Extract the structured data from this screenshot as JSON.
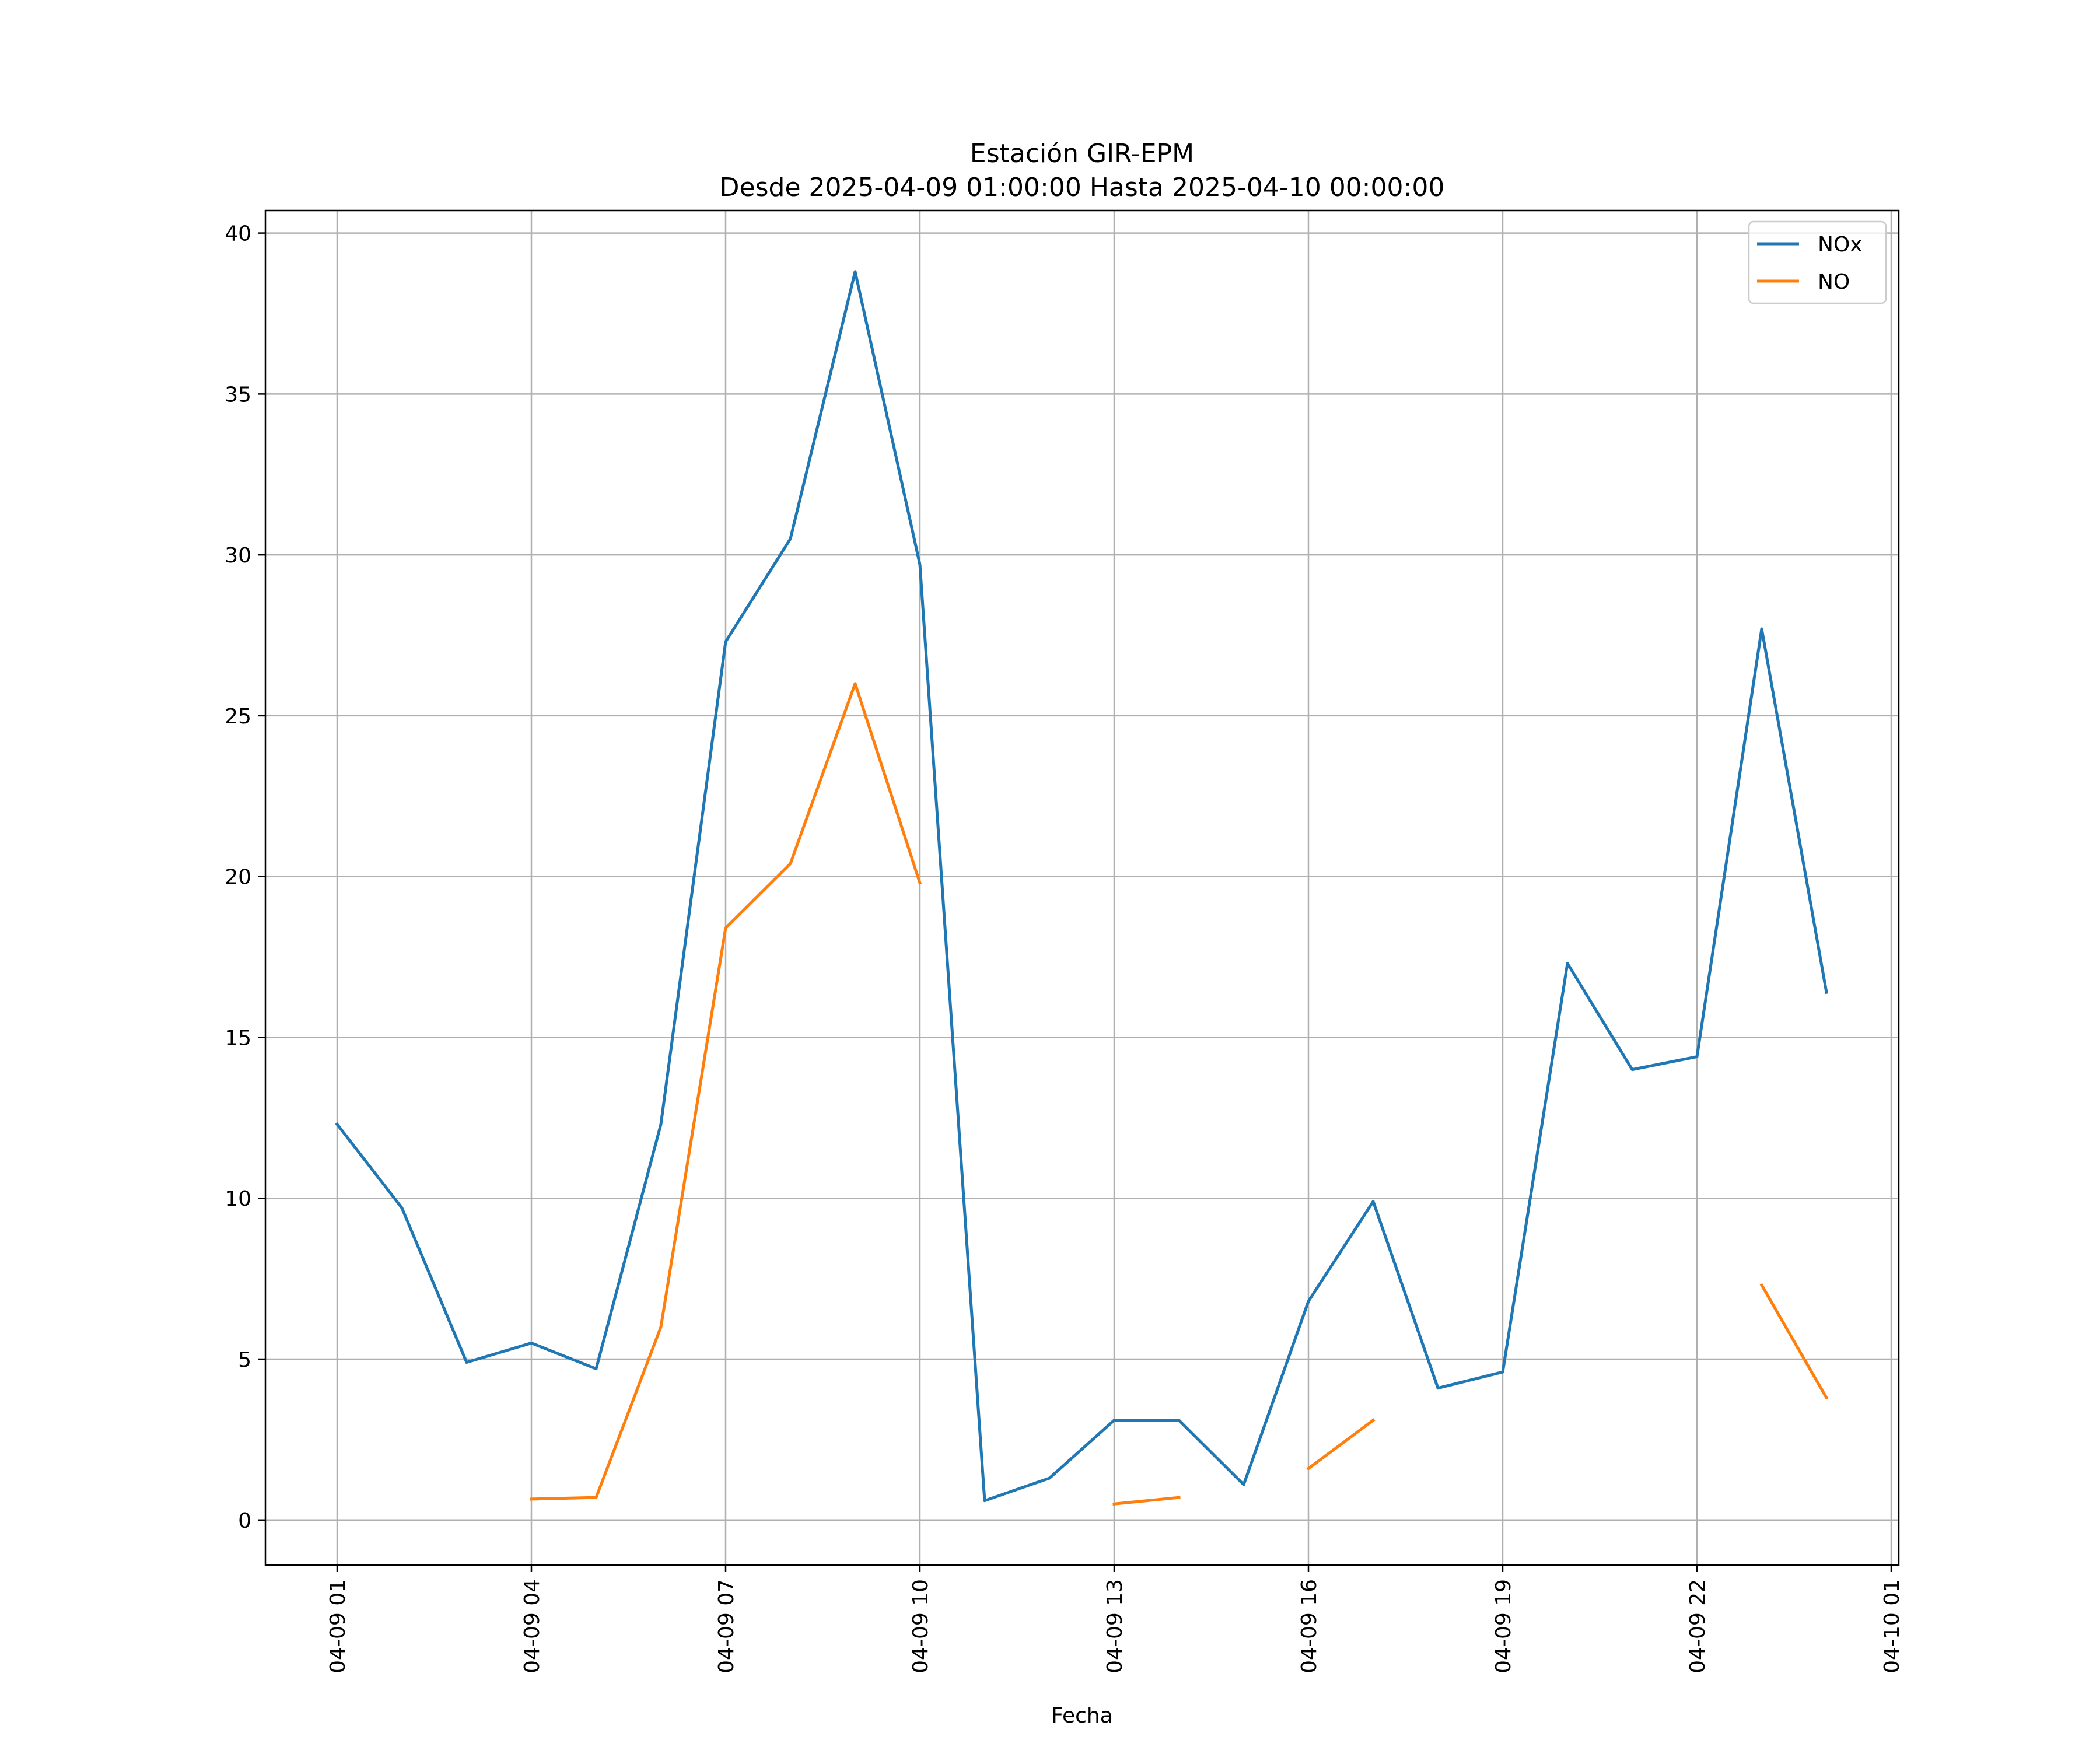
{
  "chart_data": {
    "type": "line",
    "title_lines": [
      "Estación GIR-EPM",
      "Desde 2025-04-09 01:00:00 Hasta 2025-04-10 00:00:00"
    ],
    "xlabel": "Fecha",
    "ylabel": "",
    "x": [
      "04-09 01",
      "04-09 02",
      "04-09 03",
      "04-09 04",
      "04-09 05",
      "04-09 06",
      "04-09 07",
      "04-09 08",
      "04-09 09",
      "04-09 10",
      "04-09 11",
      "04-09 12",
      "04-09 13",
      "04-09 14",
      "04-09 15",
      "04-09 16",
      "04-09 17",
      "04-09 18",
      "04-09 19",
      "04-09 20",
      "04-09 21",
      "04-09 22",
      "04-09 23",
      "04-10 00"
    ],
    "xticks": [
      "04-09 01",
      "04-09 04",
      "04-09 07",
      "04-09 10",
      "04-09 13",
      "04-09 16",
      "04-09 19",
      "04-09 22",
      "04-10 01"
    ],
    "yticks": [
      "0",
      "5",
      "10",
      "15",
      "20",
      "25",
      "30",
      "35",
      "40"
    ],
    "ylim": [
      -1.4,
      40.7
    ],
    "grid": true,
    "legend_position": "top-right",
    "series": [
      {
        "name": "NOx",
        "color": "#1f77b4",
        "values": [
          12.3,
          9.7,
          4.9,
          5.5,
          4.7,
          12.3,
          27.3,
          30.5,
          38.8,
          29.7,
          0.6,
          1.3,
          3.1,
          3.1,
          1.1,
          6.8,
          9.9,
          4.1,
          4.6,
          17.3,
          14.0,
          14.4,
          27.7,
          16.4
        ]
      },
      {
        "name": "NO",
        "color": "#ff7f0e",
        "values": [
          null,
          null,
          null,
          0.65,
          0.7,
          6.0,
          18.4,
          20.4,
          26.0,
          19.8,
          null,
          null,
          0.5,
          0.7,
          null,
          1.6,
          3.1,
          null,
          null,
          null,
          null,
          null,
          7.3,
          3.8
        ]
      }
    ]
  }
}
